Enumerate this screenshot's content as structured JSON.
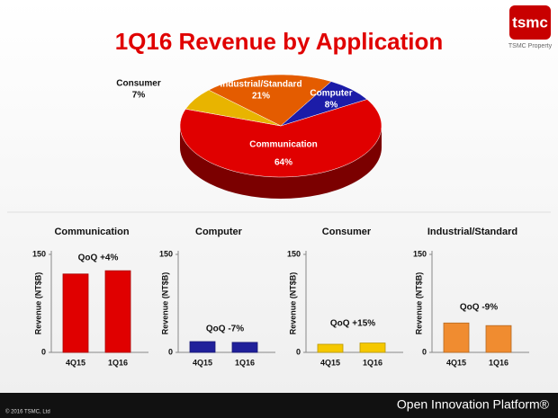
{
  "logo": {
    "text": "tsmc",
    "caption": "TSMC Property"
  },
  "footer": {
    "copyright": "© 2016 TSMC, Ltd",
    "tagline": "Open Innovation Platform®"
  },
  "chart_data": [
    {
      "type": "pie",
      "title": "1Q16 Revenue by Application",
      "categories": [
        "Communication",
        "Computer",
        "Consumer",
        "Industrial/Standard"
      ],
      "values": [
        64,
        8,
        7,
        21
      ],
      "value_labels": [
        "64%",
        "8%",
        "7%",
        "21%"
      ],
      "colors": [
        "#e00000",
        "#1c1ca8",
        "#e8b400",
        "#e45c00"
      ]
    },
    {
      "type": "bar",
      "title": "Communication",
      "ylabel": "Revenue (NT$B)",
      "categories": [
        "4Q15",
        "1Q16"
      ],
      "values": [
        120,
        125
      ],
      "color": "#e00000",
      "ylim": [
        0,
        150
      ],
      "yticks": [
        0,
        150
      ],
      "annotation": "QoQ  +4%"
    },
    {
      "type": "bar",
      "title": "Computer",
      "ylabel": "Revenue (NT$B)",
      "categories": [
        "4Q15",
        "1Q16"
      ],
      "values": [
        16.5,
        15.3
      ],
      "color": "#20209a",
      "ylim": [
        0,
        150
      ],
      "yticks": [
        0,
        150
      ],
      "annotation": "QoQ -7%"
    },
    {
      "type": "bar",
      "title": "Consumer",
      "ylabel": "Revenue (NT$B)",
      "categories": [
        "4Q15",
        "1Q16"
      ],
      "values": [
        12.4,
        14.3
      ],
      "color": "#f5c800",
      "ylim": [
        0,
        150
      ],
      "yticks": [
        0,
        150
      ],
      "annotation": "QoQ +15%"
    },
    {
      "type": "bar",
      "title": "Industrial/Standard",
      "ylabel": "Revenue (NT$B)",
      "categories": [
        "4Q15",
        "1Q16"
      ],
      "values": [
        45,
        41
      ],
      "color": "#f08c30",
      "ylim": [
        0,
        150
      ],
      "yticks": [
        0,
        150
      ],
      "annotation": "QoQ -9%"
    }
  ]
}
